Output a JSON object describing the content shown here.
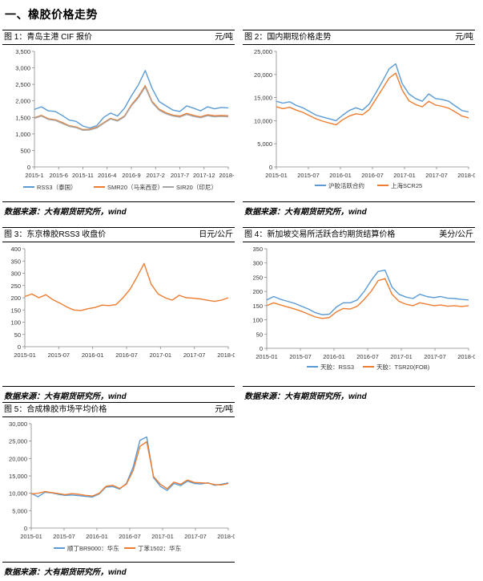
{
  "section_title": "一、橡胶价格走势",
  "source_note": "数据来源：大有期货研究所，wind",
  "chart_data": [
    {
      "id": "fig1",
      "type": "line",
      "title": "图 1：青岛主港 CIF 报价",
      "unit": "元/吨",
      "x_ticks": [
        "2015-1",
        "2015-6",
        "2015-11",
        "2016-4",
        "2016-9",
        "2017-2",
        "2017-7",
        "2017-12",
        "2018-5"
      ],
      "ylim": [
        0,
        3500
      ],
      "y_ticks": [
        "0",
        "500",
        "1,000",
        "1,500",
        "2,000",
        "2,500",
        "3,000",
        "3,500"
      ],
      "series": [
        {
          "name": "RSS3（泰国）",
          "color": "#5B9BD5",
          "values": [
            1740,
            1820,
            1700,
            1680,
            1560,
            1420,
            1380,
            1240,
            1180,
            1250,
            1500,
            1630,
            1540,
            1780,
            2150,
            2480,
            2920,
            2380,
            1980,
            1850,
            1720,
            1680,
            1850,
            1780,
            1700,
            1820,
            1760,
            1800,
            1790
          ]
        },
        {
          "name": "SMR20（马来西亚）",
          "color": "#ED7D31",
          "values": [
            1490,
            1560,
            1460,
            1430,
            1350,
            1250,
            1210,
            1130,
            1140,
            1200,
            1340,
            1470,
            1410,
            1540,
            1880,
            2130,
            2460,
            1980,
            1750,
            1640,
            1570,
            1540,
            1620,
            1560,
            1520,
            1580,
            1550,
            1560,
            1550
          ]
        },
        {
          "name": "SIR20（印尼）",
          "color": "#A5A5A5",
          "values": [
            1470,
            1540,
            1440,
            1410,
            1320,
            1230,
            1190,
            1110,
            1120,
            1180,
            1320,
            1450,
            1390,
            1520,
            1850,
            2090,
            2420,
            1950,
            1720,
            1610,
            1540,
            1510,
            1590,
            1530,
            1490,
            1550,
            1520,
            1530,
            1520
          ]
        }
      ]
    },
    {
      "id": "fig2",
      "type": "line",
      "title": "图 2：国内期现价格走势",
      "unit": "元/吨",
      "x_ticks": [
        "2015-01",
        "2015-07",
        "2016-01",
        "2016-07",
        "2017-01",
        "2017-07",
        "2018-01"
      ],
      "ylim": [
        0,
        25000
      ],
      "y_ticks": [
        "0",
        "5,000",
        "10,000",
        "15,000",
        "20,000",
        "25,000"
      ],
      "series": [
        {
          "name": "沪胶活跃合约",
          "color": "#5B9BD5",
          "values": [
            14200,
            13800,
            14100,
            13300,
            12800,
            12000,
            11200,
            10800,
            10400,
            10000,
            11200,
            12200,
            12800,
            12300,
            13600,
            16000,
            18500,
            21200,
            22300,
            18000,
            15800,
            14800,
            14200,
            15800,
            14800,
            14600,
            14200,
            13200,
            12200,
            11900
          ]
        },
        {
          "name": "上海SCR25",
          "color": "#ED7D31",
          "values": [
            13000,
            12600,
            12900,
            12300,
            11800,
            11100,
            10400,
            9900,
            9500,
            9100,
            10200,
            11000,
            11500,
            11300,
            12400,
            14600,
            16900,
            19200,
            20300,
            16600,
            14300,
            13500,
            13000,
            14200,
            13400,
            13100,
            12700,
            11900,
            11000,
            10600
          ]
        }
      ]
    },
    {
      "id": "fig3",
      "type": "line",
      "title": "图 3：东京橡胶RSS3 收盘价",
      "unit": "日元/公斤",
      "x_ticks": [
        "2015-01",
        "2015-07",
        "2016-01",
        "2016-07",
        "2017-01",
        "2017-07",
        "2018-01"
      ],
      "ylim": [
        0,
        400
      ],
      "y_ticks": [
        "0",
        "50",
        "100",
        "150",
        "200",
        "250",
        "300",
        "350",
        "400"
      ],
      "series": [
        {
          "name": "RSS3",
          "color": "#ED7D31",
          "values": [
            205,
            215,
            200,
            212,
            192,
            178,
            162,
            150,
            148,
            155,
            160,
            170,
            168,
            172,
            200,
            235,
            285,
            340,
            255,
            215,
            200,
            190,
            210,
            200,
            198,
            195,
            190,
            185,
            190,
            200
          ]
        }
      ]
    },
    {
      "id": "fig4",
      "type": "line",
      "title": "图 4：新加坡交易所活跃合约期货结算价格",
      "unit": "美分/公斤",
      "x_ticks": [
        "2015-01",
        "2015-07",
        "2016-01",
        "2016-07",
        "2017-01",
        "2017-07",
        "2018-01"
      ],
      "ylim": [
        0,
        350
      ],
      "y_ticks": [
        "0",
        "50",
        "100",
        "150",
        "200",
        "250",
        "300",
        "350"
      ],
      "series": [
        {
          "name": "天胶：RSS3",
          "color": "#5B9BD5",
          "values": [
            170,
            182,
            172,
            165,
            158,
            148,
            138,
            125,
            118,
            120,
            145,
            160,
            160,
            170,
            200,
            238,
            270,
            275,
            215,
            190,
            180,
            175,
            190,
            182,
            178,
            182,
            176,
            175,
            172,
            170
          ]
        },
        {
          "name": "天胶：TSR20(FOB)",
          "color": "#ED7D31",
          "values": [
            150,
            160,
            152,
            145,
            138,
            130,
            120,
            110,
            105,
            108,
            128,
            140,
            138,
            148,
            172,
            200,
            238,
            245,
            190,
            165,
            155,
            150,
            160,
            155,
            150,
            152,
            148,
            150,
            147,
            150
          ]
        }
      ]
    },
    {
      "id": "fig5",
      "type": "line",
      "title": "图 5：合成橡胶市场平均价格",
      "unit": "元/吨",
      "x_ticks": [
        "2015-01",
        "2015-07",
        "2016-01",
        "2016-07",
        "2017-01",
        "2017-07",
        "2018-01"
      ],
      "ylim": [
        0,
        30000
      ],
      "y_ticks": [
        "0",
        "5,000",
        "10,000",
        "15,000",
        "20,000",
        "25,000",
        "30,000"
      ],
      "series": [
        {
          "name": "顺丁BR9000：华东",
          "color": "#5B9BD5",
          "values": [
            10000,
            9000,
            10300,
            10100,
            9700,
            9400,
            9500,
            9300,
            9100,
            8900,
            9800,
            11800,
            11900,
            11200,
            12800,
            17500,
            25200,
            26200,
            14500,
            12000,
            10800,
            12800,
            12200,
            13500,
            12800,
            12700,
            13000,
            12300,
            12600,
            13000
          ]
        },
        {
          "name": "丁苯1502：华东",
          "color": "#ED7D31",
          "values": [
            9800,
            10000,
            10500,
            10200,
            9900,
            9600,
            9900,
            9700,
            9400,
            9200,
            10000,
            12000,
            12300,
            11400,
            12600,
            16500,
            23500,
            24800,
            14800,
            12600,
            11300,
            13200,
            12600,
            13800,
            13100,
            13000,
            12900,
            12500,
            12400,
            12800
          ]
        }
      ]
    }
  ]
}
